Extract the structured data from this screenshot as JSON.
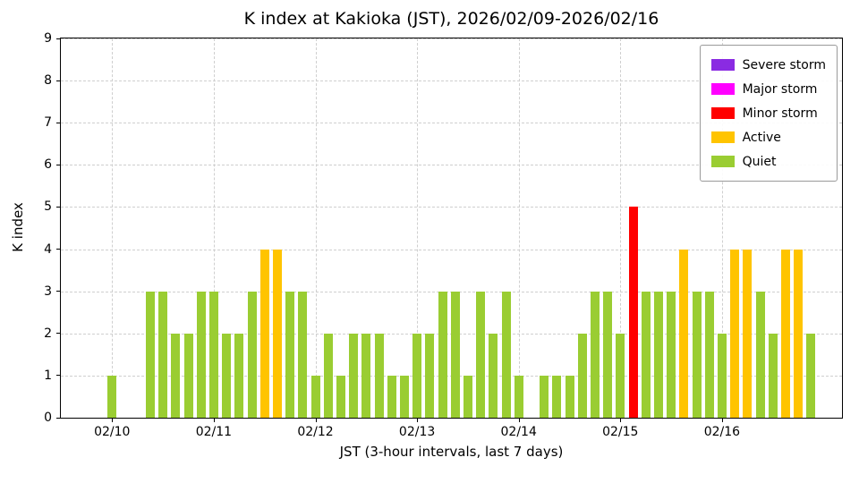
{
  "chart_data": {
    "type": "bar",
    "title": "K index at Kakioka (JST), 2026/02/09-2026/02/16",
    "xlabel": "JST (3-hour intervals, last 7 days)",
    "ylabel": "K index",
    "ylim": [
      0,
      9
    ],
    "yticks": [
      0,
      1,
      2,
      3,
      4,
      5,
      6,
      7,
      8,
      9
    ],
    "grid": true,
    "legend_position": "upper right",
    "interval_hours": 3,
    "day_ticks": [
      {
        "label": "02/10",
        "slot": 4
      },
      {
        "label": "02/11",
        "slot": 12
      },
      {
        "label": "02/12",
        "slot": 20
      },
      {
        "label": "02/13",
        "slot": 28
      },
      {
        "label": "02/14",
        "slot": 36
      },
      {
        "label": "02/15",
        "slot": 44
      },
      {
        "label": "02/16",
        "slot": 52
      }
    ],
    "values": [
      null,
      null,
      null,
      null,
      1,
      null,
      null,
      3,
      3,
      2,
      2,
      3,
      3,
      2,
      2,
      3,
      4,
      4,
      3,
      3,
      1,
      2,
      1,
      2,
      2,
      2,
      1,
      1,
      2,
      2,
      3,
      3,
      1,
      3,
      2,
      3,
      1,
      null,
      1,
      1,
      1,
      2,
      3,
      3,
      2,
      5,
      3,
      3,
      3,
      4,
      3,
      3,
      2,
      4,
      4,
      3,
      2,
      4,
      4,
      2
    ],
    "legend": [
      {
        "label": "Severe storm",
        "color": "#8A2BE2"
      },
      {
        "label": "Major storm",
        "color": "#FF00FF"
      },
      {
        "label": "Minor storm",
        "color": "#FF0000"
      },
      {
        "label": "Active",
        "color": "#FFC400"
      },
      {
        "label": "Quiet",
        "color": "#9ACD32"
      }
    ],
    "thresholds": {
      "severe_min": 8,
      "major_min": 6,
      "minor_min": 5,
      "active_min": 4
    }
  }
}
